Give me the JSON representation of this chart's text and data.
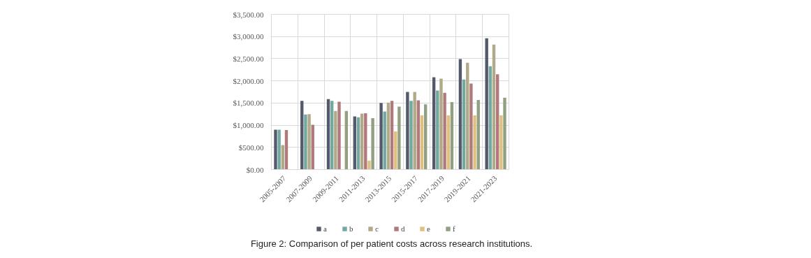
{
  "chart_data": {
    "type": "bar",
    "categories": [
      "2005-2007",
      "2007-2009",
      "2009-2011",
      "2011-2013",
      "2013-2015",
      "2015-2017",
      "2017-2019",
      "2019-2021",
      "2021-2023"
    ],
    "series": [
      {
        "name": "a",
        "color": "#545a6c",
        "values": [
          900,
          1550,
          1590,
          1200,
          1500,
          1750,
          2080,
          2490,
          2960
        ]
      },
      {
        "name": "b",
        "color": "#72a8a0",
        "values": [
          900,
          1240,
          1550,
          1180,
          1310,
          1550,
          1780,
          2030,
          2330
        ]
      },
      {
        "name": "c",
        "color": "#b0aa88",
        "values": [
          550,
          1250,
          1320,
          1260,
          1510,
          1750,
          2050,
          2410,
          2820
        ]
      },
      {
        "name": "d",
        "color": "#b07a7c",
        "values": [
          890,
          1010,
          1530,
          1270,
          1550,
          1560,
          1730,
          1940,
          2150
        ]
      },
      {
        "name": "e",
        "color": "#e0c080",
        "values": [
          null,
          null,
          null,
          200,
          860,
          1220,
          1220,
          1220,
          1220
        ]
      },
      {
        "name": "f",
        "color": "#90a080",
        "values": [
          null,
          null,
          1320,
          1160,
          1420,
          1470,
          1520,
          1570,
          1620
        ]
      }
    ],
    "ylim": [
      0,
      3500
    ],
    "yticks": [
      {
        "value": 0,
        "label": "$0.00"
      },
      {
        "value": 500,
        "label": "$500.00"
      },
      {
        "value": 1000,
        "label": "$1,000.00"
      },
      {
        "value": 1500,
        "label": "$1,500.00"
      },
      {
        "value": 2000,
        "label": "$2,000.00"
      },
      {
        "value": 2500,
        "label": "$2,500.00"
      },
      {
        "value": 3000,
        "label": "$3,000.00"
      },
      {
        "value": 3500,
        "label": "$3,500.00"
      }
    ],
    "grid": true,
    "legend": "bottom",
    "annotations": [
      "Figure 2: Comparison of per patient costs across research institutions."
    ]
  }
}
